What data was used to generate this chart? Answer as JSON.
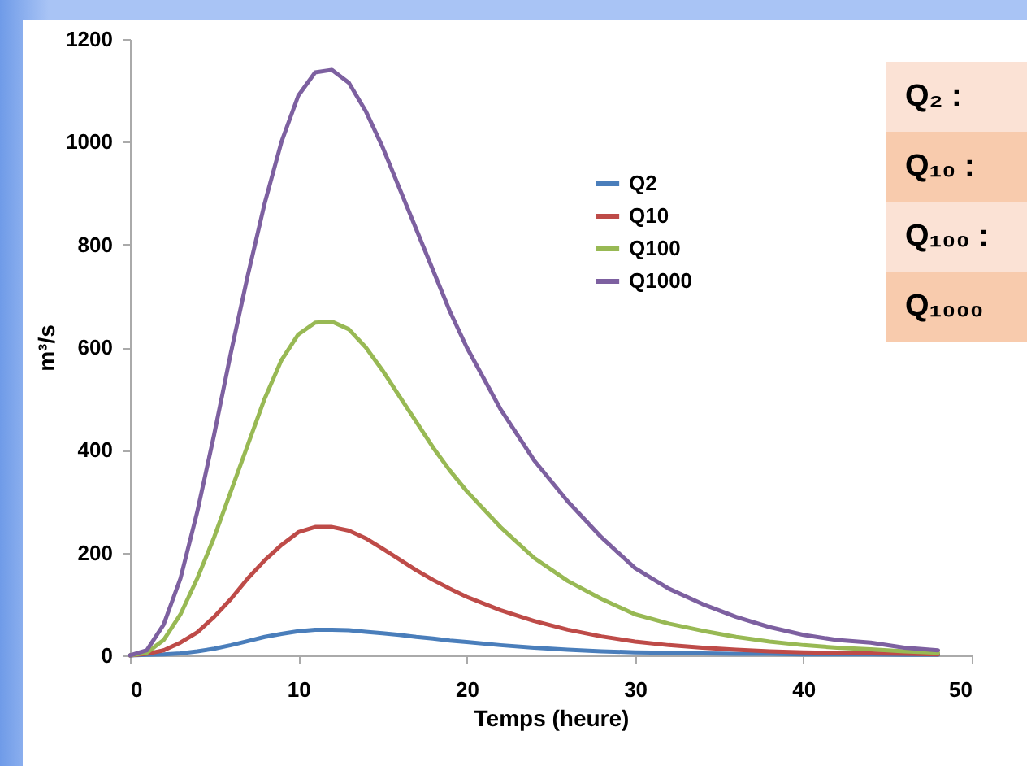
{
  "chart_data": {
    "type": "line",
    "xlabel": "Temps (heure)",
    "ylabel": "m³/s",
    "x": [
      0,
      1,
      2,
      3,
      4,
      5,
      6,
      7,
      8,
      9,
      10,
      11,
      12,
      13,
      14,
      15,
      16,
      17,
      18,
      19,
      20,
      22,
      24,
      26,
      28,
      30,
      32,
      34,
      36,
      38,
      40,
      42,
      44,
      46,
      48
    ],
    "series": [
      {
        "name": "Q2",
        "color": "#4a7ebb",
        "values": [
          0,
          1,
          2,
          4,
          8,
          13,
          20,
          28,
          36,
          42,
          47,
          50,
          50,
          49,
          46,
          43,
          40,
          36,
          33,
          29,
          26,
          20,
          15,
          11,
          8,
          6,
          5,
          4,
          3,
          3,
          2,
          2,
          2,
          1,
          1
        ]
      },
      {
        "name": "Q10",
        "color": "#be4b48",
        "values": [
          0,
          3,
          10,
          25,
          45,
          75,
          110,
          150,
          185,
          215,
          240,
          250,
          250,
          243,
          228,
          208,
          187,
          166,
          147,
          130,
          114,
          88,
          67,
          50,
          37,
          27,
          20,
          15,
          11,
          8,
          6,
          5,
          4,
          3,
          2
        ]
      },
      {
        "name": "Q100",
        "color": "#98b954",
        "values": [
          0,
          5,
          30,
          80,
          150,
          230,
          320,
          410,
          500,
          575,
          625,
          648,
          650,
          635,
          600,
          555,
          505,
          455,
          405,
          360,
          320,
          250,
          190,
          145,
          110,
          80,
          62,
          48,
          36,
          27,
          20,
          15,
          12,
          8,
          5
        ]
      },
      {
        "name": "Q1000",
        "color": "#7d60a0",
        "values": [
          0,
          10,
          60,
          150,
          280,
          430,
          590,
          740,
          880,
          1000,
          1090,
          1135,
          1140,
          1115,
          1060,
          990,
          910,
          830,
          750,
          670,
          600,
          480,
          380,
          300,
          230,
          170,
          130,
          100,
          75,
          55,
          40,
          30,
          25,
          15,
          10
        ]
      }
    ],
    "xlim": [
      0,
      50
    ],
    "xticks": [
      0,
      10,
      20,
      30,
      40,
      50
    ],
    "ylim": [
      0,
      1200
    ],
    "yticks": [
      0,
      200,
      400,
      600,
      800,
      1000,
      1200
    ],
    "grid": false,
    "legend": "top right",
    "annotations": [
      "Q₂ :",
      "Q₁₀ :",
      "Q₁₀₀ :",
      "Q₁₀₀₀"
    ]
  }
}
